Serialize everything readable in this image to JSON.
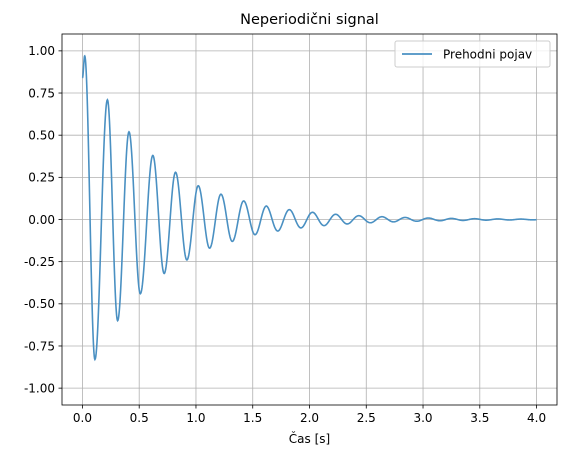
{
  "chart_data": {
    "type": "line",
    "title": "Neperiodični signal",
    "xlabel": "Čas [s]",
    "ylabel": "",
    "xlim": [
      -0.18,
      4.18
    ],
    "ylim": [
      -1.1,
      1.1
    ],
    "xticks": [
      "0.0",
      "0.5",
      "1.0",
      "1.5",
      "2.0",
      "2.5",
      "3.0",
      "3.5",
      "4.0"
    ],
    "yticks": [
      "-1.00",
      "-0.75",
      "-0.50",
      "-0.25",
      "0.00",
      "0.25",
      "0.50",
      "0.75",
      "1.00"
    ],
    "grid": true,
    "legend": {
      "position": "top-right"
    },
    "series": [
      {
        "name": "Prehodni pojav",
        "color": "#4a90c2",
        "description_points": [
          {
            "x": 0.0,
            "y": 0.84
          },
          {
            "x": 0.02,
            "y": 0.97
          },
          {
            "x": 0.11,
            "y": -0.83
          },
          {
            "x": 0.22,
            "y": 0.71
          },
          {
            "x": 0.31,
            "y": -0.6
          },
          {
            "x": 0.41,
            "y": 0.52
          },
          {
            "x": 0.51,
            "y": -0.44
          },
          {
            "x": 0.62,
            "y": 0.38
          },
          {
            "x": 0.72,
            "y": -0.32
          },
          {
            "x": 0.82,
            "y": 0.28
          },
          {
            "x": 0.92,
            "y": -0.24
          },
          {
            "x": 1.02,
            "y": 0.2
          },
          {
            "x": 1.12,
            "y": -0.17
          },
          {
            "x": 1.22,
            "y": 0.15
          },
          {
            "x": 1.32,
            "y": -0.13
          },
          {
            "x": 1.42,
            "y": 0.11
          },
          {
            "x": 1.52,
            "y": -0.09
          },
          {
            "x": 1.62,
            "y": 0.08
          },
          {
            "x": 2.0,
            "y": 0.04
          },
          {
            "x": 4.0,
            "y": 0.0
          }
        ]
      }
    ]
  }
}
